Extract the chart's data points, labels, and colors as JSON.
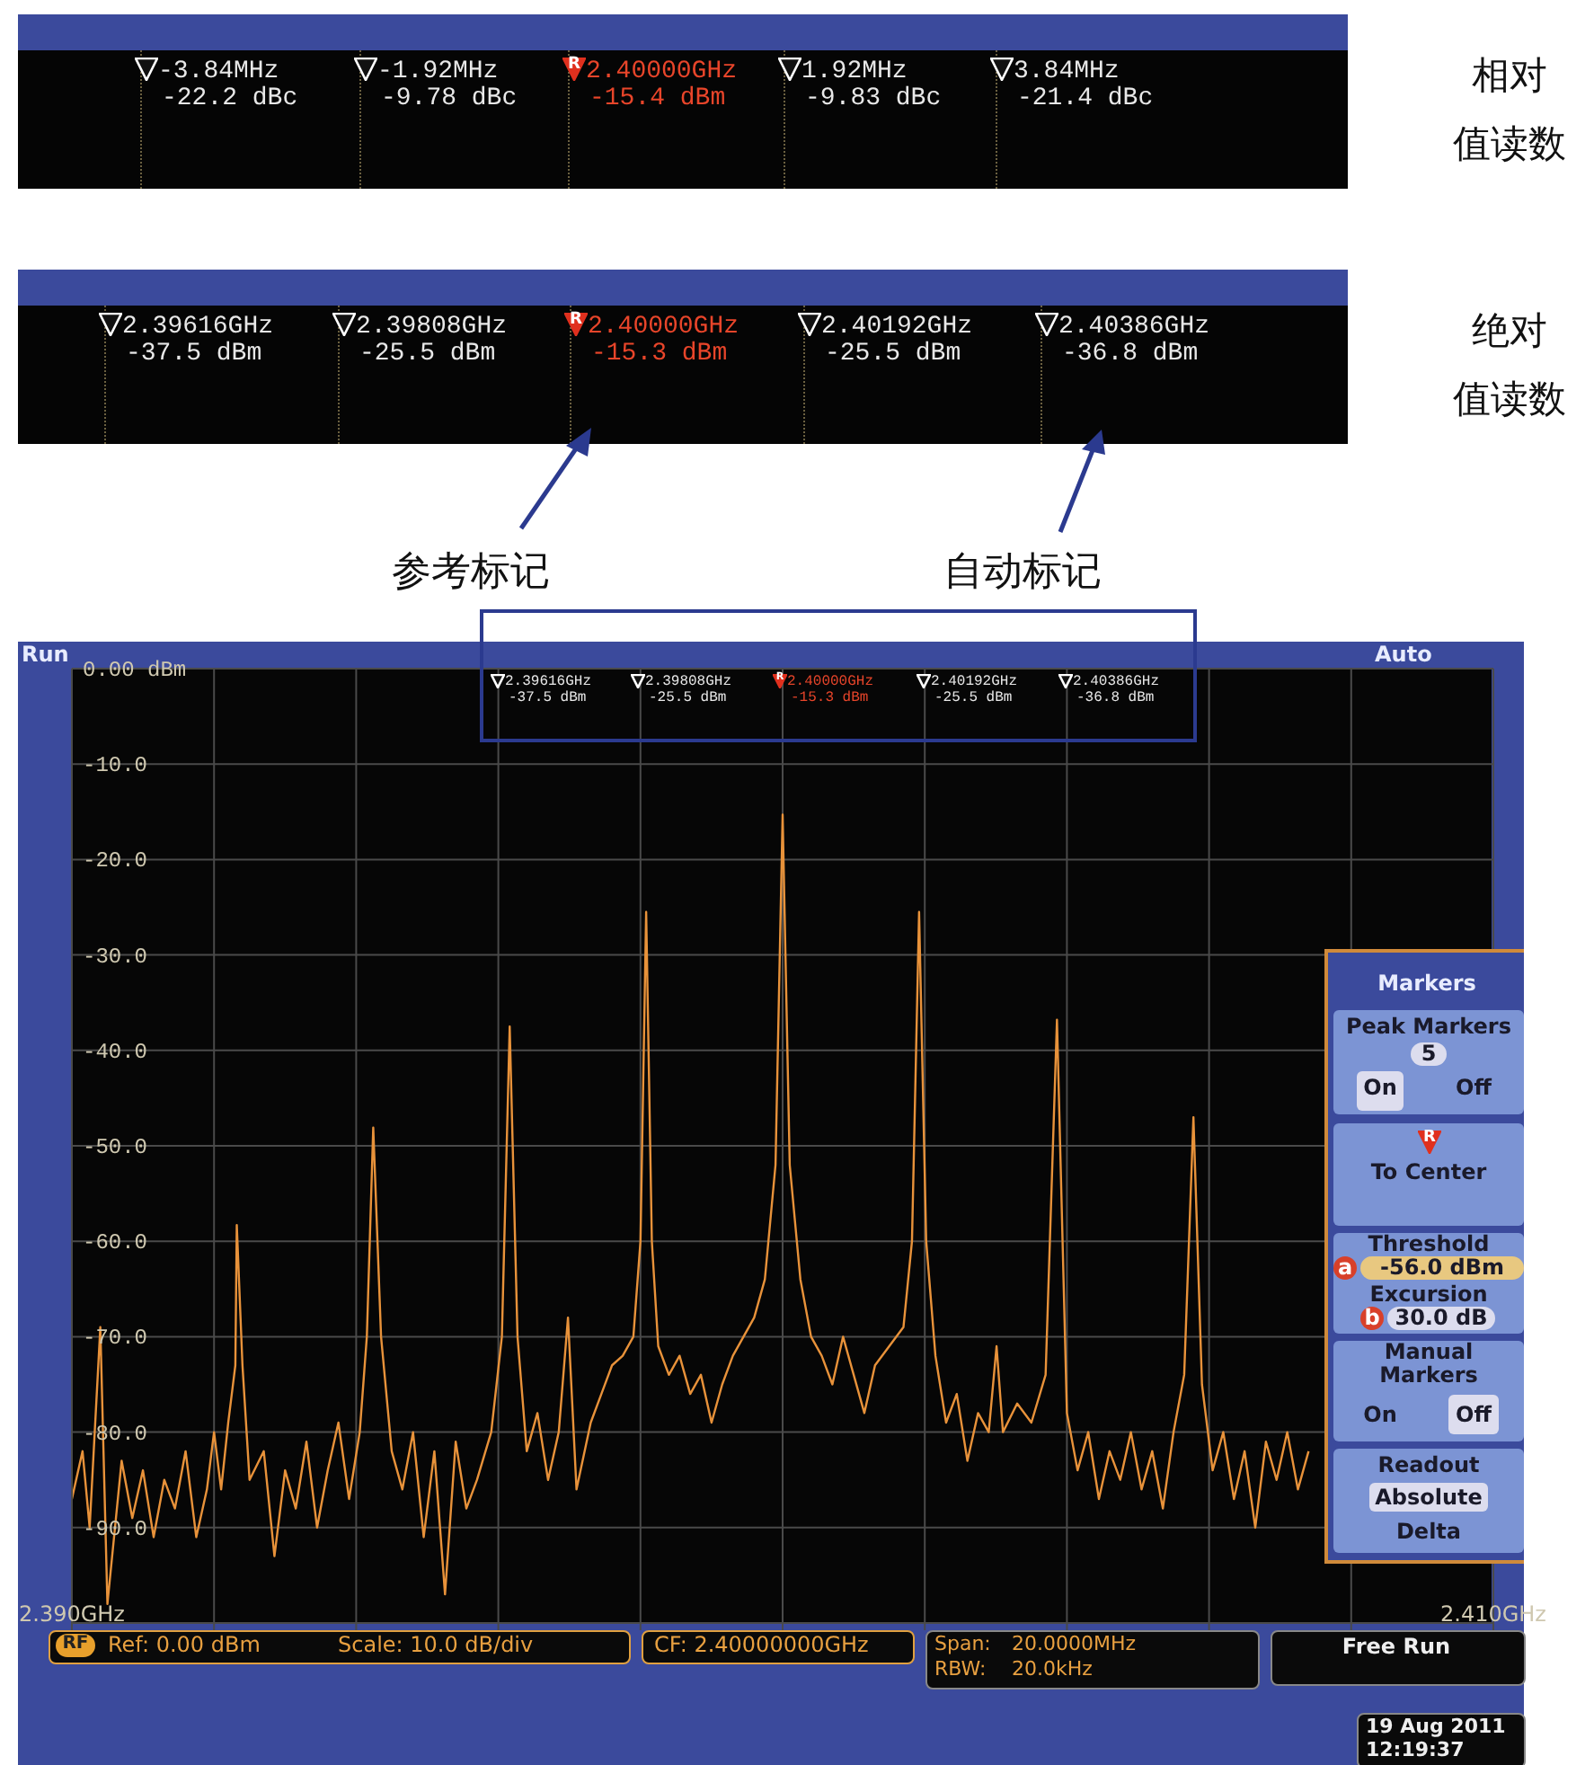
{
  "chart_data": {
    "type": "line",
    "x": [
      2.39,
      2.39015,
      2.39025,
      2.3904,
      2.3905,
      2.3907,
      2.39085,
      2.391,
      2.39115,
      2.3913,
      2.39145,
      2.3916,
      2.39175,
      2.3919,
      2.392,
      2.3921,
      2.3922,
      2.3923,
      2.39232,
      2.3924,
      2.3925,
      2.3927,
      2.39285,
      2.393,
      2.39315,
      2.3933,
      2.39345,
      2.3936,
      2.39375,
      2.3939,
      2.39405,
      2.39415,
      2.39424,
      2.39435,
      2.3945,
      2.39465,
      2.3948,
      2.39495,
      2.3951,
      2.39525,
      2.3954,
      2.39555,
      2.3957,
      2.3959,
      2.39605,
      2.39616,
      2.39627,
      2.3964,
      2.39655,
      2.3967,
      2.39685,
      2.39698,
      2.3971,
      2.3973,
      2.39745,
      2.3976,
      2.39775,
      2.3979,
      2.398,
      2.39808,
      2.39816,
      2.39825,
      2.3984,
      2.39855,
      2.3987,
      2.39885,
      2.399,
      2.39915,
      2.3993,
      2.39945,
      2.3996,
      2.39975,
      2.3999,
      2.4,
      2.4001,
      2.40025,
      2.4004,
      2.40055,
      2.4007,
      2.40085,
      2.401,
      2.40115,
      2.4013,
      2.4015,
      2.4017,
      2.40182,
      2.40192,
      2.40202,
      2.40215,
      2.4023,
      2.40245,
      2.4026,
      2.40275,
      2.4029,
      2.40301,
      2.4031,
      2.4033,
      2.4035,
      2.4037,
      2.40386,
      2.404,
      2.40415,
      2.4043,
      2.40445,
      2.4046,
      2.40475,
      2.4049,
      2.40505,
      2.4052,
      2.40535,
      2.4055,
      2.40565,
      2.40578,
      2.4059,
      2.40605,
      2.4062,
      2.40635,
      2.4065,
      2.40665,
      2.4068,
      2.40695,
      2.4071,
      2.40725,
      2.4074
    ],
    "values": [
      -87,
      -82,
      -90,
      -69,
      -98,
      -83,
      -89,
      -84,
      -91,
      -85,
      -88,
      -82,
      -91,
      -86,
      -80,
      -86,
      -79,
      -73,
      -58.3,
      -73,
      -85,
      -82,
      -93,
      -84,
      -88,
      -81,
      -90,
      -84,
      -79,
      -87,
      -80,
      -70,
      -48.1,
      -70,
      -82,
      -86,
      -80,
      -91,
      -82,
      -97,
      -81,
      -88,
      -85,
      -80,
      -70,
      -37.5,
      -70,
      -82,
      -78,
      -85,
      -80,
      -68,
      -86,
      -79,
      -76,
      -73,
      -72,
      -70,
      -60,
      -25.5,
      -60,
      -71,
      -74,
      -72,
      -76,
      -74,
      -79,
      -75,
      -72,
      -70,
      -68,
      -64,
      -52,
      -15.3,
      -52,
      -64,
      -70,
      -72,
      -75,
      -70,
      -74,
      -78,
      -73,
      -71,
      -69,
      -60,
      -25.5,
      -60,
      -72,
      -79,
      -76,
      -83,
      -78,
      -80,
      -71,
      -80,
      -77,
      -79,
      -74,
      -36.8,
      -78,
      -84,
      -80,
      -87,
      -82,
      -85,
      -80,
      -86,
      -82,
      -88,
      -80,
      -74,
      -47,
      -75,
      -84,
      -80,
      -87,
      -82,
      -90,
      -81,
      -85,
      -80,
      -86,
      -82
    ],
    "color": "#e8923a",
    "xlim": [
      2.39,
      2.41
    ],
    "xticks": [
      {
        "value": 2.39,
        "label": "2.390GHz"
      },
      {
        "value": 2.392,
        "label": null
      },
      {
        "value": 2.394,
        "label": null
      },
      {
        "value": 2.396,
        "label": null
      },
      {
        "value": 2.398,
        "label": null
      },
      {
        "value": 2.4,
        "label": null
      },
      {
        "value": 2.402,
        "label": null
      },
      {
        "value": 2.404,
        "label": null
      },
      {
        "value": 2.406,
        "label": null
      },
      {
        "value": 2.408,
        "label": null
      },
      {
        "value": 2.41,
        "label": "2.410GHz"
      }
    ],
    "ylim": [
      -100,
      0
    ],
    "yticks": [
      {
        "value": 0,
        "label": "0.00 dBm"
      },
      {
        "value": -10,
        "label": "-10.0"
      },
      {
        "value": -20,
        "label": "-20.0"
      },
      {
        "value": -30,
        "label": "-30.0"
      },
      {
        "value": -40,
        "label": "-40.0"
      },
      {
        "value": -50,
        "label": "-50.0"
      },
      {
        "value": -60,
        "label": "-60.0"
      },
      {
        "value": -70,
        "label": "-70.0"
      },
      {
        "value": -80,
        "label": "-80.0"
      },
      {
        "value": -90,
        "label": "-90.0"
      },
      {
        "value": -100,
        "label": null
      }
    ],
    "grid": true,
    "legend": false,
    "marker": "none",
    "line_style": "solid",
    "annotations": [
      "-3.84MHz",
      "-22.2 dBc",
      "-1.92MHz",
      "-9.78 dBc",
      "2.40000GHz",
      "-15.4 dBm",
      "1.92MHz",
      "-9.83 dBc",
      "3.84MHz",
      "-21.4 dBc",
      "相对",
      "值读数",
      "2.39616GHz",
      "-37.5 dBm",
      "2.39808GHz",
      "-25.5 dBm",
      "2.40000GHz",
      "-15.3 dBm",
      "2.40192GHz",
      "-25.5 dBm",
      "2.40386GHz",
      "-36.8 dBm",
      "绝对",
      "值读数",
      "参考标记",
      "自动标记",
      "Run",
      "Auto",
      "RF",
      "Ref: 0.00 dBm",
      "Scale: 10.0 dB/div",
      "CF: 2.40000000GHz",
      "Span:",
      "20.0000MHz",
      "RBW:",
      "20.0kHz",
      "Free Run",
      "19 Aug 2011",
      "12:19:37",
      "Markers",
      "Peak Markers",
      "5",
      "On",
      "Off",
      "To Center",
      "Threshold",
      "a",
      "-56.0 dBm",
      "Excursion",
      "b",
      "30.0 dB",
      "Manual Markers",
      "On",
      "Off",
      "Readout",
      "Absolute",
      "Delta",
      "R"
    ]
  }
}
